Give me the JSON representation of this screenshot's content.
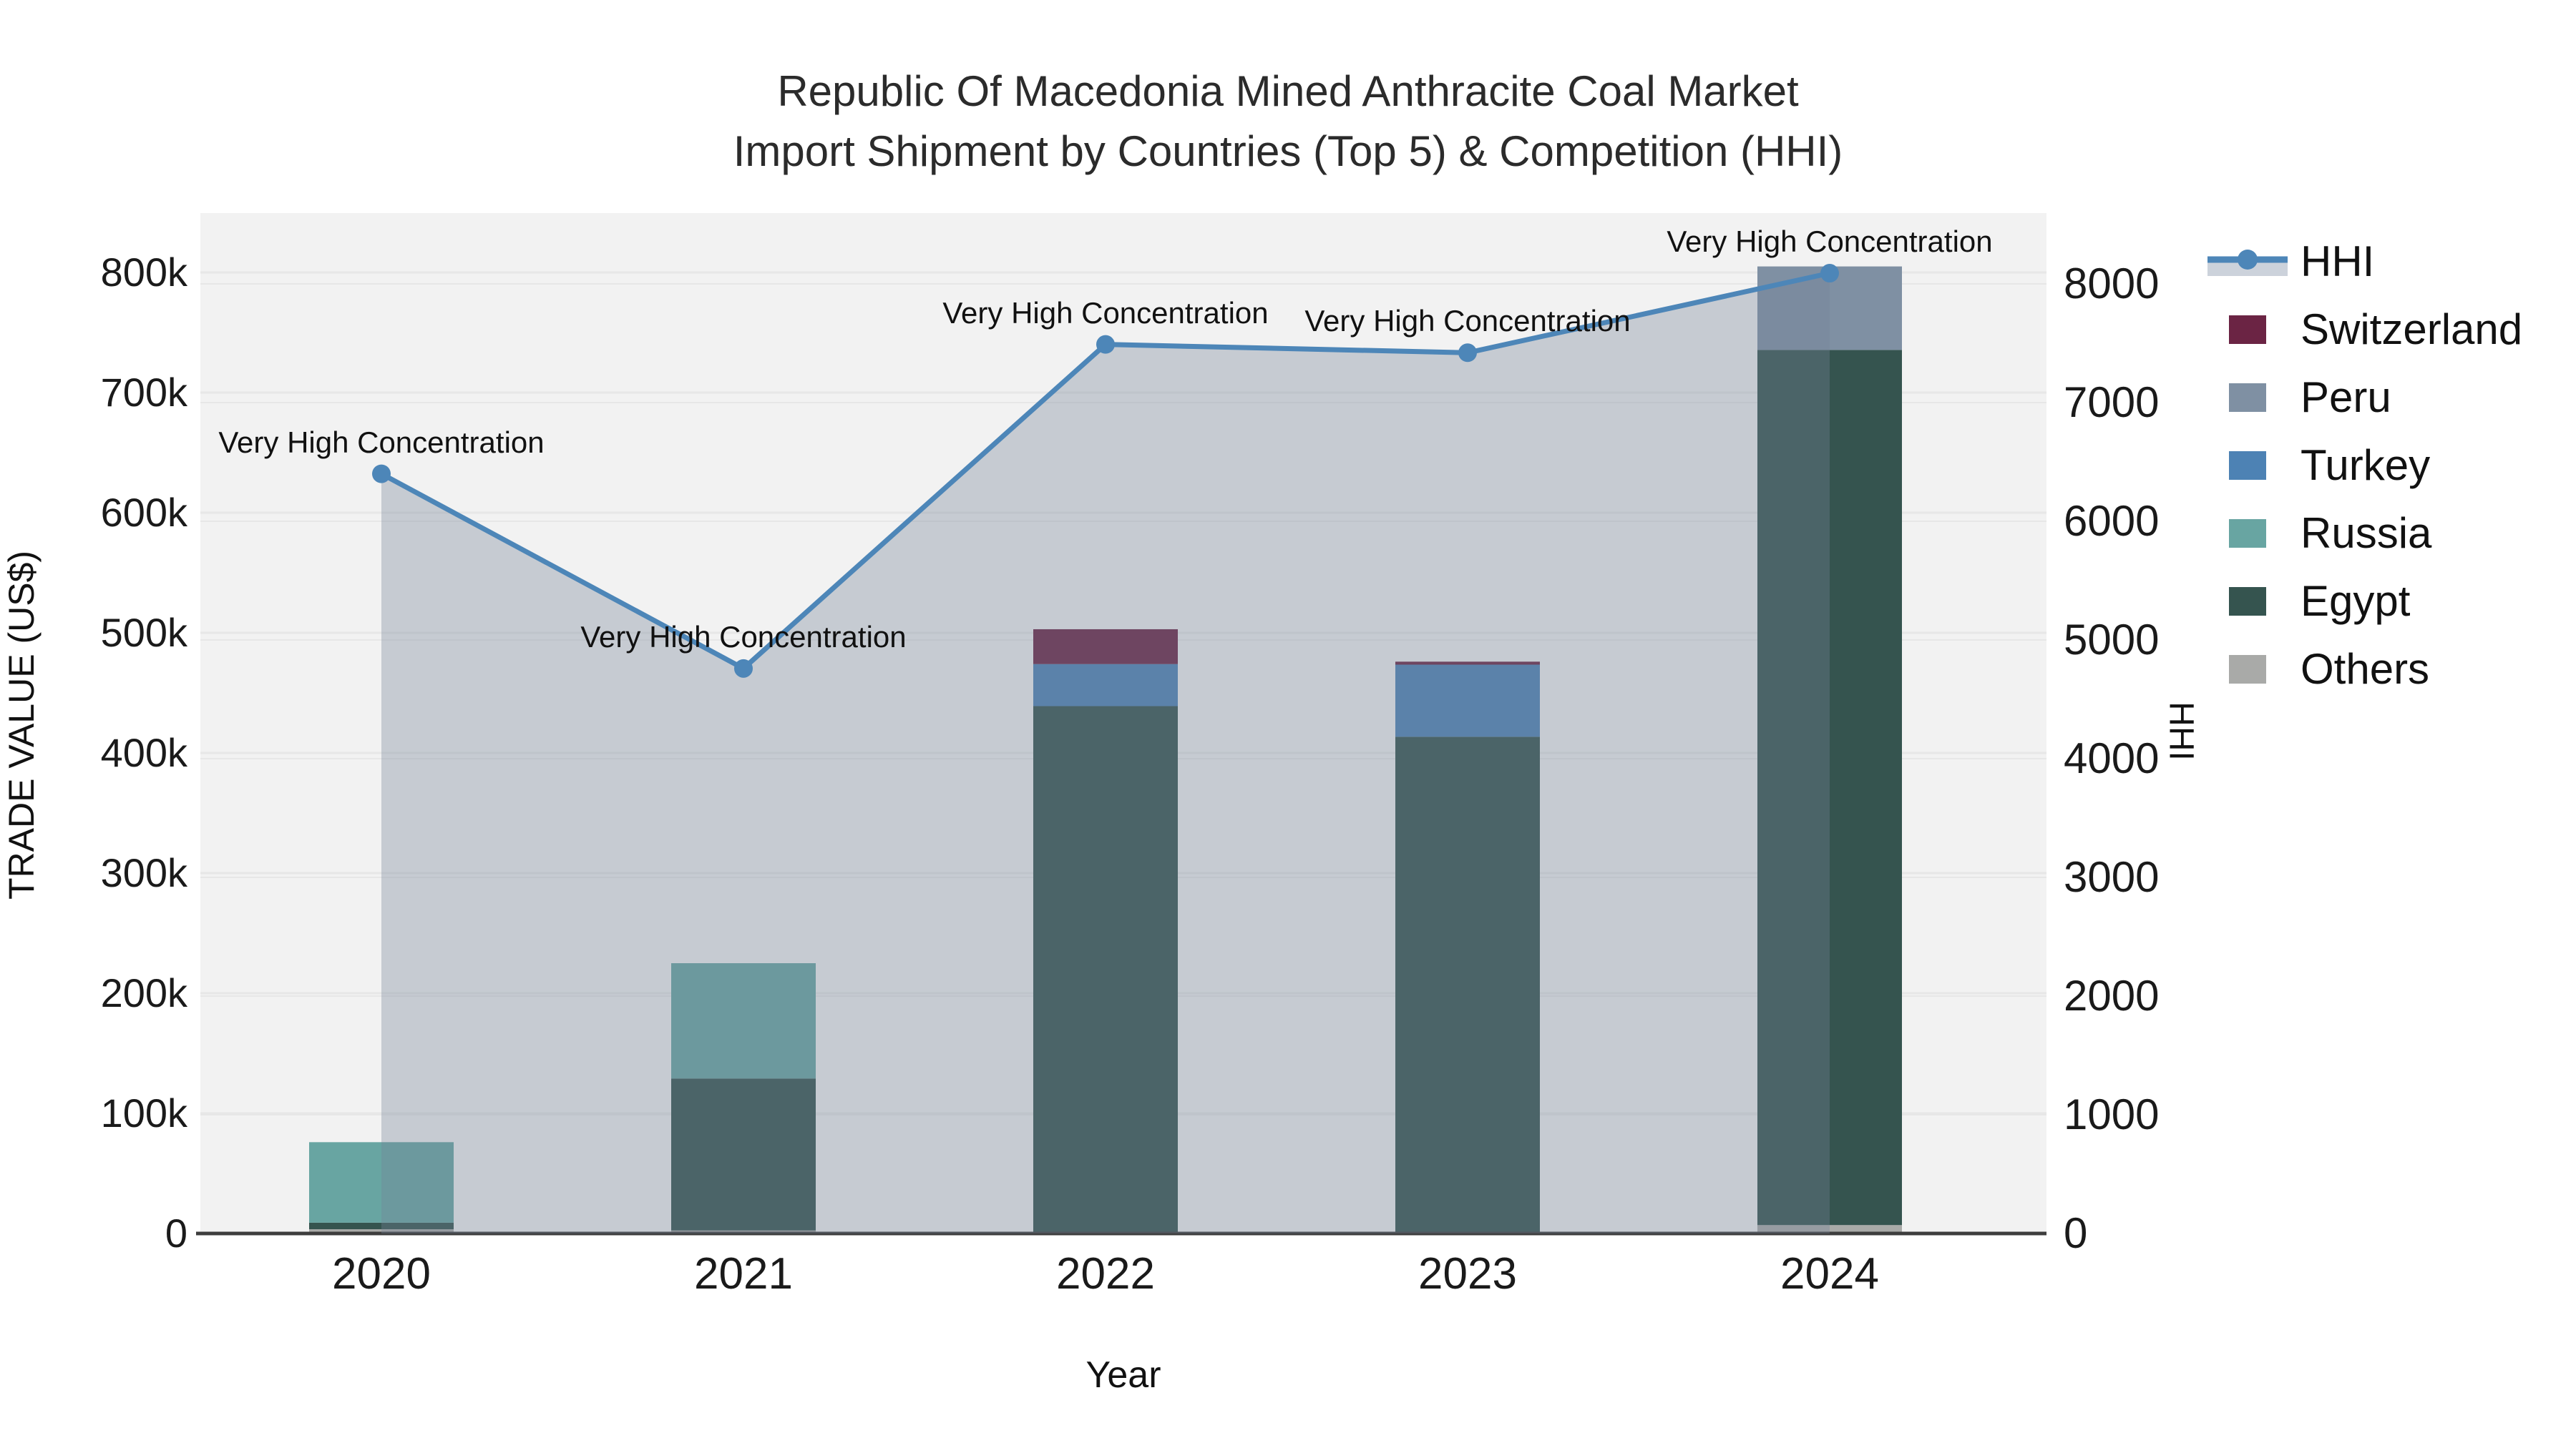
{
  "title": {
    "line1": "Republic Of Macedonia Mined Anthracite Coal Market",
    "line2": "Import Shipment by Countries (Top 5) & Competition (HHI)"
  },
  "chart_data": {
    "type": "bar",
    "subtype": "stacked-bars-with-line",
    "title": "Republic Of Macedonia Mined Anthracite Coal Market Import Shipment by Countries (Top 5) & Competition (HHI)",
    "xlabel": "Year",
    "ylabel_left": "TRADE VALUE (US$)",
    "ylabel_right": "HHI",
    "categories": [
      "2020",
      "2021",
      "2022",
      "2023",
      "2024"
    ],
    "series": [
      {
        "name": "Others",
        "color": "#a9aaa8",
        "values": [
          3500,
          2500,
          0,
          0,
          7000
        ]
      },
      {
        "name": "Egypt",
        "color": "#35544f",
        "values": [
          5500,
          126500,
          439000,
          413500,
          728500
        ]
      },
      {
        "name": "Russia",
        "color": "#68a5a2",
        "values": [
          67000,
          96000,
          0,
          0,
          0
        ]
      },
      {
        "name": "Turkey",
        "color": "#4d82b4",
        "values": [
          0,
          0,
          35000,
          60000,
          0
        ]
      },
      {
        "name": "Peru",
        "color": "#7f90a3",
        "values": [
          0,
          0,
          0,
          0,
          69500
        ]
      },
      {
        "name": "Switzerland",
        "color": "#6b2444",
        "values": [
          0,
          0,
          29000,
          2500,
          0
        ]
      }
    ],
    "line_series": {
      "name": "HHI",
      "color": "#4d86b8",
      "area_color": "rgba(118,131,153,0.35)",
      "values": [
        6400,
        4760,
        7490,
        7420,
        8090
      ]
    },
    "annotations": [
      {
        "year": "2020",
        "text": "Very High Concentration"
      },
      {
        "year": "2021",
        "text": "Very High Concentration"
      },
      {
        "year": "2022",
        "text": "Very High Concentration"
      },
      {
        "year": "2023",
        "text": "Very High Concentration"
      },
      {
        "year": "2024",
        "text": "Very High Concentration"
      }
    ],
    "left_axis": {
      "tick_values": [
        0,
        100000,
        200000,
        300000,
        400000,
        500000,
        600000,
        700000,
        800000
      ],
      "tick_labels": [
        "0",
        "100k",
        "200k",
        "300k",
        "400k",
        "500k",
        "600k",
        "700k",
        "800k"
      ],
      "range": [
        0,
        850000
      ],
      "grid": true
    },
    "right_axis": {
      "tick_values": [
        0,
        1000,
        2000,
        3000,
        4000,
        5000,
        6000,
        7000,
        8000
      ],
      "tick_labels": [
        "0",
        "1000",
        "2000",
        "3000",
        "4000",
        "5000",
        "6000",
        "7000",
        "8000"
      ],
      "range": [
        0,
        8600
      ],
      "grid": true
    },
    "legend_position": "right",
    "legend": [
      {
        "label": "HHI",
        "type": "line",
        "color": "#4d86b8",
        "band_color": "#ccd2db"
      },
      {
        "label": "Switzerland",
        "type": "swatch",
        "color": "#6b2444"
      },
      {
        "label": "Peru",
        "type": "swatch",
        "color": "#7f90a3"
      },
      {
        "label": "Turkey",
        "type": "swatch",
        "color": "#4d82b4"
      },
      {
        "label": "Russia",
        "type": "swatch",
        "color": "#68a5a2"
      },
      {
        "label": "Egypt",
        "type": "swatch",
        "color": "#35544f"
      },
      {
        "label": "Others",
        "type": "swatch",
        "color": "#a9aaa8"
      }
    ],
    "colors": {
      "plot_background": "#f2f2f2",
      "figure_background": "#ffffff",
      "gridline": "#e7e7e7",
      "axis_line": "#3d3d3d",
      "hhi_line": "#4d86b8"
    }
  }
}
